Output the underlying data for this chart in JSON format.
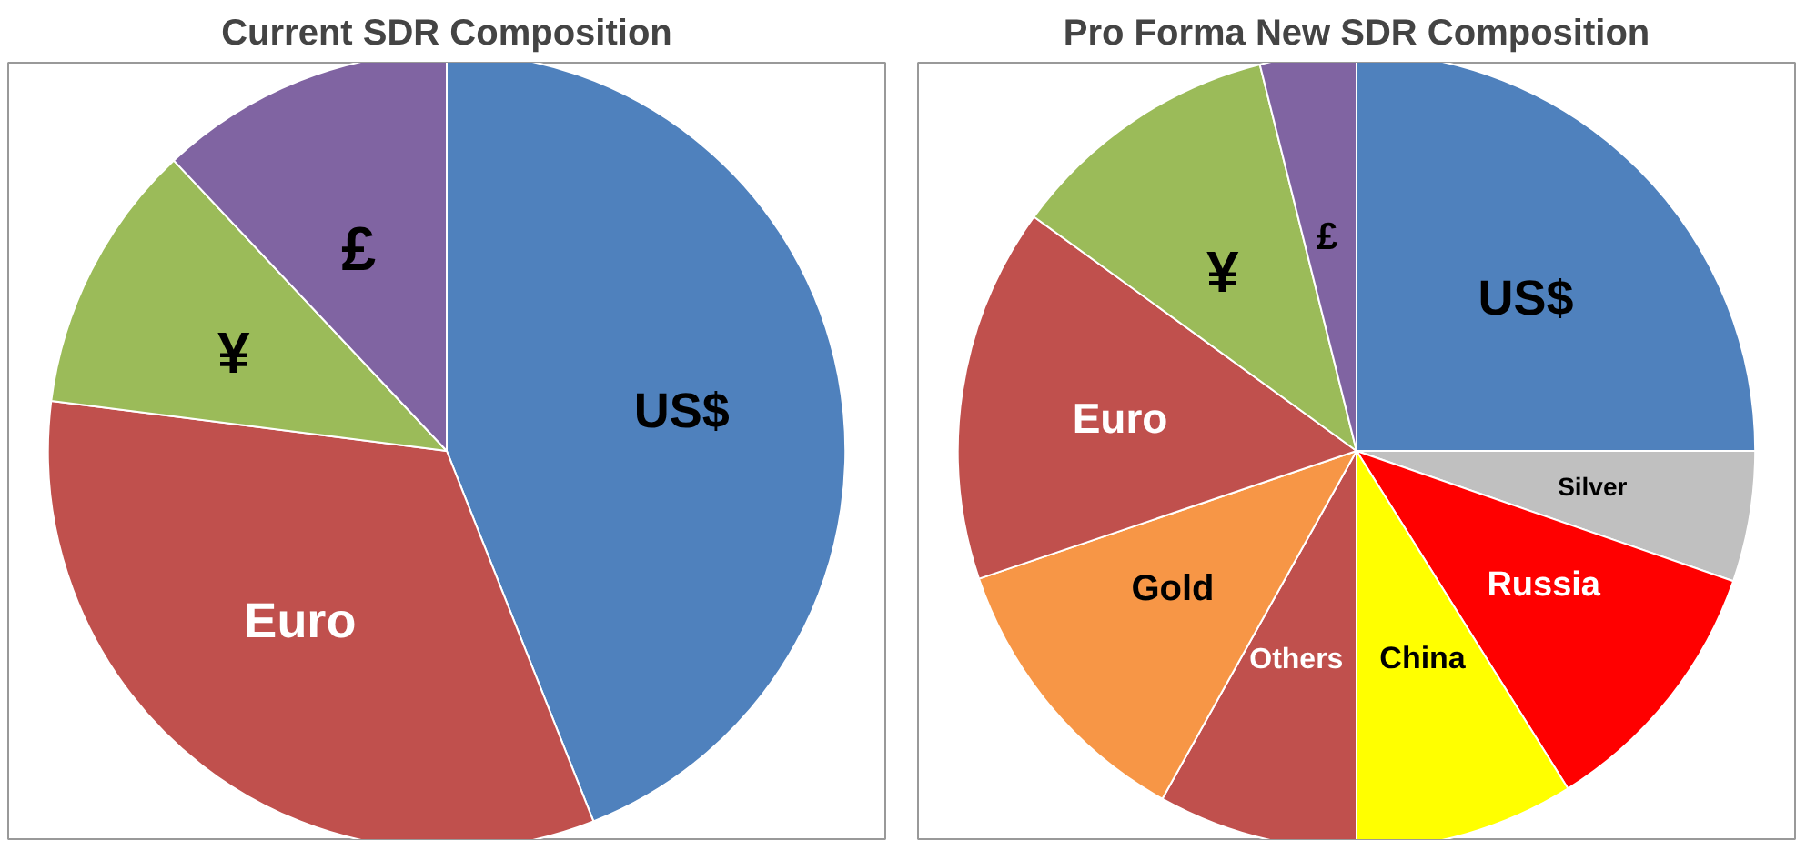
{
  "chart_data": [
    {
      "type": "pie",
      "title": "Current SDR Composition",
      "categories": [
        "US$",
        "Euro",
        "¥",
        "£"
      ],
      "values": [
        44,
        33,
        11,
        12
      ],
      "colors": [
        "#4f81bd",
        "#c0504d",
        "#9bbb59",
        "#8064a2"
      ]
    },
    {
      "type": "pie",
      "title": "Pro Forma New SDR Composition",
      "categories": [
        "US$",
        "Silver",
        "Russia",
        "China",
        "Others",
        "Gold",
        "Euro",
        "¥",
        "£"
      ],
      "values": [
        25,
        5.3,
        10.8,
        8.9,
        8.1,
        11.7,
        15.2,
        11.1,
        3.9
      ],
      "colors": [
        "#4f81bd",
        "#c0c0c0",
        "#ff0000",
        "#ffff00",
        "#c0504d",
        "#f79646",
        "#c0504d",
        "#9bbb59",
        "#8064a2"
      ]
    }
  ]
}
